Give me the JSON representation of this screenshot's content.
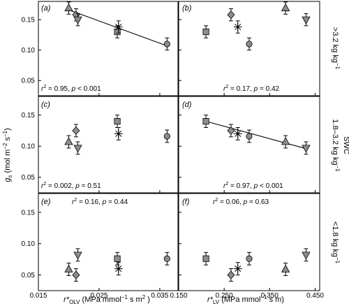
{
  "chart_data": [
    {
      "panel": "(a)",
      "column": "OLV",
      "row": ">3.2",
      "stat": "r2 = 0.95, p < 0.001",
      "points": [
        {
          "shape": "triangle-up",
          "x": 0.02,
          "y": 0.169
        },
        {
          "shape": "diamond",
          "x": 0.0212,
          "y": 0.158
        },
        {
          "shape": "triangle-down",
          "x": 0.0215,
          "y": 0.15
        },
        {
          "shape": "square",
          "x": 0.028,
          "y": 0.13
        },
        {
          "shape": "asterisk",
          "x": 0.0282,
          "y": 0.138
        },
        {
          "shape": "circle",
          "x": 0.0362,
          "y": 0.11
        }
      ],
      "fit": {
        "x": [
          0.02,
          0.0362
        ],
        "y": [
          0.166,
          0.107
        ]
      }
    },
    {
      "panel": "(b)",
      "column": "LV",
      "row": ">3.2",
      "stat": "r2 = 0.17, p = 0.42",
      "points": [
        {
          "shape": "square",
          "x": 0.21,
          "y": 0.13
        },
        {
          "shape": "diamond",
          "x": 0.265,
          "y": 0.158
        },
        {
          "shape": "asterisk",
          "x": 0.28,
          "y": 0.138
        },
        {
          "shape": "circle",
          "x": 0.305,
          "y": 0.11
        },
        {
          "shape": "triangle-up",
          "x": 0.385,
          "y": 0.169
        },
        {
          "shape": "triangle-down",
          "x": 0.43,
          "y": 0.15
        }
      ]
    },
    {
      "panel": "(c)",
      "column": "OLV",
      "row": "1.8-3.2",
      "stat": "r2 = 0.002, p = 0.51",
      "points": [
        {
          "shape": "triangle-up",
          "x": 0.02,
          "y": 0.107
        },
        {
          "shape": "diamond",
          "x": 0.0212,
          "y": 0.125
        },
        {
          "shape": "triangle-down",
          "x": 0.0215,
          "y": 0.097
        },
        {
          "shape": "square",
          "x": 0.028,
          "y": 0.14
        },
        {
          "shape": "asterisk",
          "x": 0.0282,
          "y": 0.12
        },
        {
          "shape": "circle",
          "x": 0.0362,
          "y": 0.116
        }
      ]
    },
    {
      "panel": "(d)",
      "column": "LV",
      "row": "1.8-3.2",
      "stat": "r2 = 0.97, p < 0.001",
      "points": [
        {
          "shape": "square",
          "x": 0.21,
          "y": 0.14
        },
        {
          "shape": "diamond",
          "x": 0.265,
          "y": 0.125
        },
        {
          "shape": "asterisk",
          "x": 0.28,
          "y": 0.12
        },
        {
          "shape": "circle",
          "x": 0.305,
          "y": 0.116
        },
        {
          "shape": "triangle-up",
          "x": 0.385,
          "y": 0.107
        },
        {
          "shape": "triangle-down",
          "x": 0.43,
          "y": 0.097
        }
      ],
      "fit": {
        "x": [
          0.21,
          0.43
        ],
        "y": [
          0.14,
          0.096
        ]
      }
    },
    {
      "panel": "(e)",
      "column": "OLV",
      "row": "<1.8",
      "stat": "r2 = 0.16, p = 0.44",
      "points": [
        {
          "shape": "triangle-up",
          "x": 0.02,
          "y": 0.059
        },
        {
          "shape": "diamond",
          "x": 0.0212,
          "y": 0.05
        },
        {
          "shape": "triangle-down",
          "x": 0.0215,
          "y": 0.082
        },
        {
          "shape": "square",
          "x": 0.028,
          "y": 0.076
        },
        {
          "shape": "asterisk",
          "x": 0.0282,
          "y": 0.06
        },
        {
          "shape": "circle",
          "x": 0.0362,
          "y": 0.076
        }
      ]
    },
    {
      "panel": "(f)",
      "column": "LV",
      "row": "<1.8",
      "stat": "r2 = 0.06, p = 0.63",
      "points": [
        {
          "shape": "square",
          "x": 0.21,
          "y": 0.076
        },
        {
          "shape": "diamond",
          "x": 0.265,
          "y": 0.05
        },
        {
          "shape": "asterisk",
          "x": 0.28,
          "y": 0.06
        },
        {
          "shape": "circle",
          "x": 0.305,
          "y": 0.076
        },
        {
          "shape": "triangle-up",
          "x": 0.385,
          "y": 0.059
        },
        {
          "shape": "triangle-down",
          "x": 0.43,
          "y": 0.082
        }
      ]
    }
  ],
  "axes": {
    "y_ticks": [
      "0.05",
      "0.10",
      "0.15"
    ],
    "y_range": [
      0.025,
      0.18
    ],
    "x_left_ticks": [
      "0.015",
      "0.025",
      "0.035"
    ],
    "x_left_range": [
      0.015,
      0.038
    ],
    "x_right_ticks": [
      "0.150",
      "0.250",
      "0.350",
      "0.450"
    ],
    "x_right_range": [
      0.15,
      0.46
    ],
    "error_bar": 0.01,
    "y_title": "gs (mol m-2 s-1)",
    "x_left_title": "r*OLV (MPa mmol-1 s m2 )",
    "x_right_title": "r*LV (MPa mmol-1 s m)"
  },
  "strip": {
    "row_labels": [
      ">3.2 kg kg-1",
      "1.8-3.2 kg kg-1",
      "<1.8 kg kg-1"
    ],
    "group_title": "SWC"
  },
  "colors": {
    "marker_fill": "#8c8c8c",
    "stroke": "#000000",
    "background": "#ffffff"
  }
}
